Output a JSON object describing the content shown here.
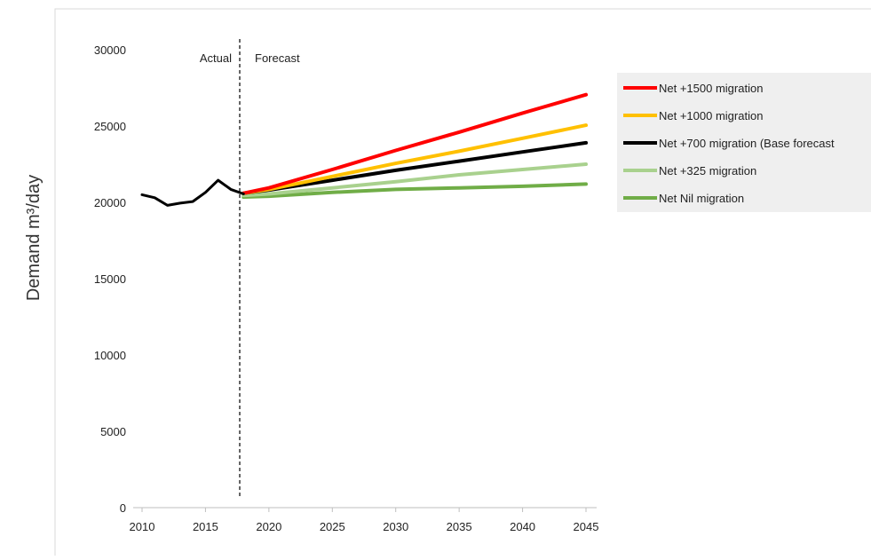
{
  "chart_data": {
    "type": "line",
    "title": "",
    "xlabel": "",
    "ylabel": "Demand m³/day",
    "xlim": [
      2009,
      2046
    ],
    "ylim": [
      0,
      30000
    ],
    "x_ticks": [
      2010,
      2015,
      2020,
      2025,
      2030,
      2035,
      2040,
      2045
    ],
    "y_ticks": [
      0,
      5000,
      10000,
      15000,
      20000,
      25000,
      30000
    ],
    "grid": false,
    "legend_position": "right",
    "divider": {
      "x": 2017.7,
      "left_label": "Actual",
      "right_label": "Forecast"
    },
    "actual": {
      "color": "#000000",
      "x": [
        2010,
        2011,
        2012,
        2013,
        2014,
        2015,
        2016,
        2017,
        2018
      ],
      "values": [
        20500,
        20300,
        19800,
        19950,
        20050,
        20650,
        21450,
        20850,
        20550
      ]
    },
    "series": [
      {
        "name": "Net +1500 migration",
        "color": "#ff0000",
        "x": [
          2018,
          2020,
          2025,
          2030,
          2035,
          2040,
          2045
        ],
        "values": [
          20600,
          20950,
          22150,
          23400,
          24600,
          25850,
          27050
        ]
      },
      {
        "name": "Net +1000 migration",
        "color": "#ffc000",
        "x": [
          2018,
          2020,
          2025,
          2030,
          2035,
          2040,
          2045
        ],
        "values": [
          20600,
          20850,
          21700,
          22550,
          23350,
          24200,
          25050
        ]
      },
      {
        "name": "Net +700 migration (Base forecast",
        "color": "#000000",
        "x": [
          2018,
          2020,
          2025,
          2030,
          2035,
          2040,
          2045
        ],
        "values": [
          20600,
          20800,
          21450,
          22100,
          22700,
          23300,
          23900
        ]
      },
      {
        "name": "Net +325 migration",
        "color": "#a9d18e",
        "x": [
          2018,
          2020,
          2025,
          2030,
          2035,
          2040,
          2045
        ],
        "values": [
          20450,
          20550,
          20950,
          21350,
          21800,
          22150,
          22500
        ]
      },
      {
        "name": "Net Nil migration",
        "color": "#70ad47",
        "x": [
          2018,
          2020,
          2025,
          2030,
          2035,
          2040,
          2045
        ],
        "values": [
          20350,
          20400,
          20650,
          20850,
          20950,
          21050,
          21200
        ]
      }
    ]
  }
}
